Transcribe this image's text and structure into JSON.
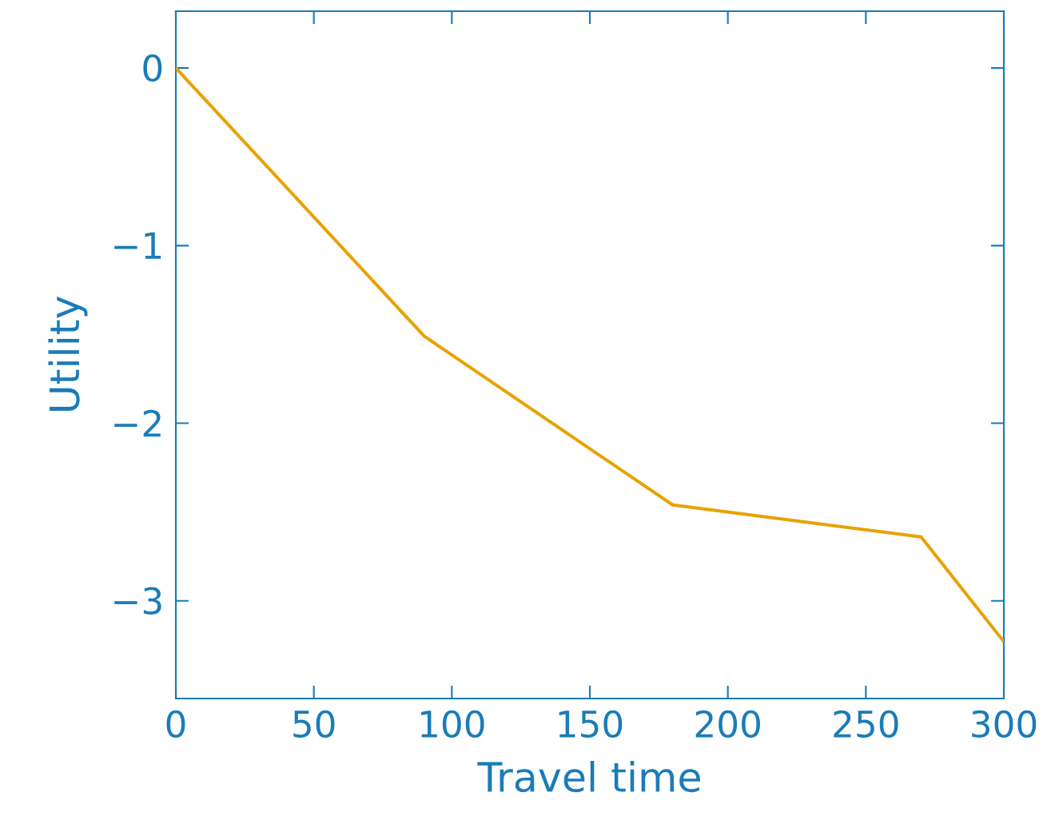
{
  "chart_data": {
    "type": "line",
    "xlabel": "Travel time",
    "ylabel": "Utility",
    "x": [
      0,
      90,
      180,
      270,
      300
    ],
    "series": [
      {
        "color": "#e8a200",
        "values": [
          0,
          -1.51,
          -2.46,
          -2.64,
          -3.23
        ]
      }
    ],
    "xlim": [
      0,
      300
    ],
    "ylim": [
      -3.55,
      0.32
    ],
    "xticks": [
      0,
      50,
      100,
      150,
      200,
      250,
      300
    ],
    "yticks": [
      {
        "value": -3,
        "label": "−3"
      },
      {
        "value": -2,
        "label": "−2"
      },
      {
        "value": -1,
        "label": "−1"
      },
      0
    ],
    "grid": false,
    "marker": "none",
    "line_style": "solid"
  }
}
